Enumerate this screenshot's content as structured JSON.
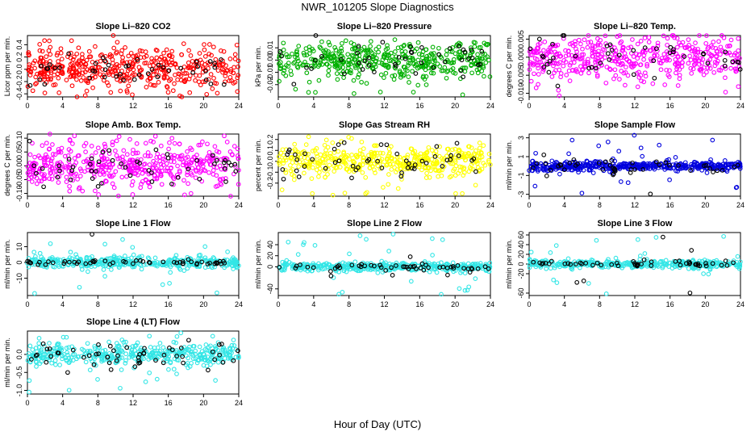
{
  "page": {
    "title": "NWR_101205  Slope Diagnostics",
    "xlabel": "Hour of Day (UTC)"
  },
  "chart_data": [
    {
      "type": "scatter",
      "title": "Slope Li–820 CO2",
      "ylabel": "Licor ppm per min.",
      "color": "#ff0000",
      "xlim": [
        0,
        24
      ],
      "xticks": [
        0,
        4,
        8,
        12,
        16,
        20,
        24
      ],
      "ylim": [
        -0.45,
        0.55
      ],
      "yticks": [
        -0.4,
        -0.2,
        0.0,
        0.2,
        0.4
      ],
      "ytick_labels": [
        "-0.4",
        "-0.2",
        "0.0",
        "0.2",
        "0.4"
      ],
      "main_spread": 0.17,
      "main_max": 0.5,
      "outlier_range": [
        -0.45,
        0.5
      ],
      "black_spread": 0.12,
      "black_count": 45,
      "point_count": 460,
      "main_segments": []
    },
    {
      "type": "scatter",
      "title": "Slope Li–820 Pressure",
      "ylabel": "kPa per min.",
      "color": "#00b000",
      "xlim": [
        0,
        24
      ],
      "xticks": [
        0,
        4,
        8,
        12,
        16,
        20,
        24
      ],
      "ylim": [
        -0.03,
        0.02
      ],
      "yticks": [
        -0.02,
        -0.01,
        0.0,
        0.01
      ],
      "ytick_labels": [
        "-0.02",
        "-0.01",
        "0.00",
        "0.01"
      ],
      "main_spread": 0.0075,
      "main_max": 0.02,
      "outlier_range": [
        -0.03,
        0.018
      ],
      "black_spread": 0.008,
      "black_count": 45,
      "point_count": 460,
      "main_segments": []
    },
    {
      "type": "scatter",
      "title": "Slope Li–820 Temp.",
      "ylabel": "degrees C per min.",
      "color": "#ff00ff",
      "xlim": [
        0,
        24
      ],
      "xticks": [
        0,
        4,
        8,
        12,
        16,
        20,
        24
      ],
      "ylim": [
        -0.011,
        0.006
      ],
      "yticks": [
        -0.01,
        -0.005,
        0.0,
        0.005
      ],
      "ytick_labels": [
        "-0.010",
        "-0.005",
        "0.000",
        "0.005"
      ],
      "main_spread": 0.003,
      "main_max": 0.006,
      "outlier_range": [
        -0.011,
        0.006
      ],
      "black_spread": 0.0025,
      "black_count": 45,
      "point_count": 460,
      "main_segments": []
    },
    {
      "type": "scatter",
      "title": "Slope Amb. Box Temp.",
      "ylabel": "degrees C per min.",
      "color": "#ff00ff",
      "xlim": [
        0,
        24
      ],
      "xticks": [
        0,
        4,
        8,
        12,
        16,
        20,
        24
      ],
      "ylim": [
        -0.11,
        0.115
      ],
      "yticks": [
        -0.1,
        -0.05,
        0.0,
        0.05,
        0.1
      ],
      "ytick_labels": [
        "-0.10",
        "-0.05",
        "0.00",
        "0.05",
        "0.10"
      ],
      "main_spread": 0.04,
      "main_max": 0.11,
      "outlier_range": [
        -0.11,
        0.11
      ],
      "black_spread": 0.03,
      "black_count": 50,
      "point_count": 460,
      "main_segments": []
    },
    {
      "type": "scatter",
      "title": "Slope Gas Stream RH",
      "ylabel": "percent per min.",
      "color": "#ffff00",
      "xlim": [
        0,
        24
      ],
      "xticks": [
        0,
        4,
        8,
        12,
        16,
        20,
        24
      ],
      "ylim": [
        -0.32,
        0.25
      ],
      "yticks": [
        -0.2,
        -0.1,
        0.0,
        0.1,
        0.2
      ],
      "ytick_labels": [
        "-0.2",
        "-0.1",
        "0.0",
        "0.1",
        "0.2"
      ],
      "main_spread": 0.07,
      "main_max": 0.22,
      "outlier_range": [
        -0.32,
        0.22
      ],
      "black_spread": 0.08,
      "black_count": 50,
      "point_count": 460,
      "main_segments": []
    },
    {
      "type": "scatter",
      "title": "Slope Sample Flow",
      "ylabel": "ml/min per min.",
      "color": "#0000dd",
      "xlim": [
        0,
        24
      ],
      "xticks": [
        0,
        4,
        8,
        12,
        16,
        20,
        24
      ],
      "ylim": [
        -3.2,
        3.4
      ],
      "yticks": [
        -3,
        -1,
        1,
        3
      ],
      "ytick_labels": [
        "-3",
        "-1",
        "1",
        "3"
      ],
      "main_spread": 0.3,
      "main_max": 3.3,
      "outlier_range": [
        -3.0,
        3.3
      ],
      "black_spread": 0.5,
      "black_count": 45,
      "point_count": 460,
      "main_segments": [
        {
          "x": [
            0,
            10
          ],
          "spread": 0.3
        },
        {
          "x": [
            10,
            24
          ],
          "spread": 0.2
        }
      ]
    },
    {
      "type": "scatter",
      "title": "Slope Line 1 Flow",
      "ylabel": "ml/min per min.",
      "color": "#33e6e6",
      "xlim": [
        0,
        24
      ],
      "xticks": [
        0,
        4,
        8,
        12,
        16,
        20,
        24
      ],
      "ylim": [
        -21,
        19
      ],
      "yticks": [
        -10,
        0,
        10
      ],
      "ytick_labels": [
        "-10",
        "0",
        "10"
      ],
      "main_spread": 1.8,
      "main_max": 18,
      "outlier_range": [
        -20,
        18
      ],
      "black_spread": 0.6,
      "black_count": 55,
      "point_count": 400,
      "main_segments": []
    },
    {
      "type": "scatter",
      "title": "Slope Line 2 Flow",
      "ylabel": "ml/min per min.",
      "color": "#33e6e6",
      "xlim": [
        0,
        24
      ],
      "xticks": [
        0,
        4,
        8,
        12,
        16,
        20,
        24
      ],
      "ylim": [
        -52,
        62
      ],
      "yticks": [
        -40,
        0,
        20,
        40
      ],
      "ytick_labels": [
        "-40",
        "0",
        "20",
        "40"
      ],
      "main_spread": 4,
      "main_max": 60,
      "outlier_range": [
        -50,
        60
      ],
      "black_spread": 3,
      "black_count": 55,
      "point_count": 400,
      "main_segments": []
    },
    {
      "type": "scatter",
      "title": "Slope Line 3 Flow",
      "ylabel": "ml/min per min.",
      "color": "#33e6e6",
      "xlim": [
        0,
        24
      ],
      "xticks": [
        0,
        4,
        8,
        12,
        16,
        20,
        24
      ],
      "ylim": [
        -65,
        65
      ],
      "yticks": [
        -60,
        -20,
        0,
        20,
        40,
        60
      ],
      "ytick_labels": [
        "-60",
        "-20",
        "0",
        "20",
        "40",
        "60"
      ],
      "main_spread": 4,
      "main_max": 62,
      "outlier_range": [
        -62,
        60
      ],
      "black_spread": 3,
      "black_count": 55,
      "point_count": 400,
      "main_segments": []
    },
    {
      "type": "scatter",
      "title": "Slope Line 4 (LT) Flow",
      "ylabel": "ml/min per min.",
      "color": "#33e6e6",
      "xlim": [
        0,
        24
      ],
      "xticks": [
        0,
        4,
        8,
        12,
        16,
        20,
        24
      ],
      "ylim": [
        -1.1,
        0.65
      ],
      "yticks": [
        -1.0,
        -0.5,
        0.0
      ],
      "ytick_labels": [
        "-1.0",
        "-0.5",
        "0.0"
      ],
      "main_spread": 0.15,
      "main_max": 0.6,
      "outlier_range": [
        -1.05,
        0.6
      ],
      "black_spread": 0.15,
      "black_count": 55,
      "point_count": 420,
      "main_segments": []
    }
  ]
}
